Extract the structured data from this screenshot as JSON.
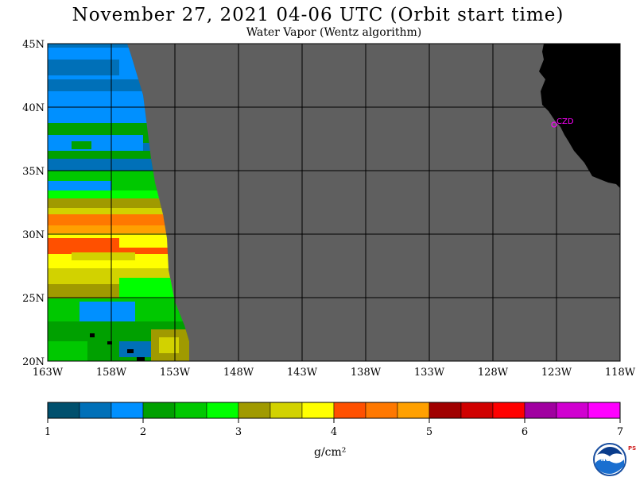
{
  "title": "November 27, 2021  04-06 UTC  (Orbit start time)",
  "subtitle": "Water Vapor (Wentz algorithm)",
  "map": {
    "lat_labels": [
      "45N",
      "40N",
      "35N",
      "30N",
      "25N",
      "20N"
    ],
    "lon_labels": [
      "163W",
      "158W",
      "153W",
      "148W",
      "143W",
      "138W",
      "133W",
      "128W",
      "123W",
      "118W"
    ],
    "lat_range": [
      20,
      45
    ],
    "lon_range": [
      -163,
      -118
    ],
    "station_label": "CZD",
    "colors": {
      "no_data": "#5f5f5f",
      "land": "#000000",
      "grid": "#000000",
      "station": "#ff00ff"
    }
  },
  "colorbar": {
    "ticks": [
      "1",
      "2",
      "3",
      "4",
      "5",
      "6",
      "7"
    ],
    "units": "g/cm²",
    "colors": [
      "#00506e",
      "#0070b8",
      "#0090ff",
      "#00a000",
      "#00c800",
      "#00ff00",
      "#a09a00",
      "#d2d200",
      "#ffff00",
      "#ff5000",
      "#ff7800",
      "#ffa000",
      "#a00000",
      "#d00000",
      "#ff0000",
      "#a000a0",
      "#d000d0",
      "#ff00ff"
    ]
  },
  "logo": {
    "text": "NOAA",
    "side_text": "PSL"
  }
}
